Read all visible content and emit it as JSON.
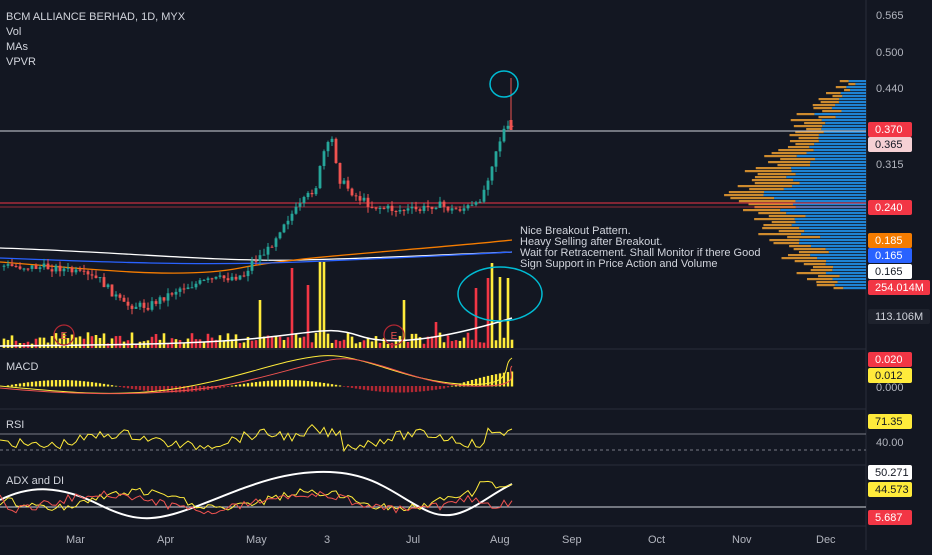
{
  "header": {
    "title": "BCM ALLIANCE BERHAD, 1D, MYX",
    "indicators": [
      "Vol",
      "MAs",
      "VPVR"
    ]
  },
  "main_axis": {
    "ticks": [
      "0.565",
      "0.500",
      "0.440",
      "0.315"
    ],
    "badges": [
      {
        "text": "0.370",
        "bg": "#f23645",
        "fg": "#ffffff"
      },
      {
        "text": "0.365",
        "bg": "#f5d0d4",
        "fg": "#131722"
      },
      {
        "text": "0.240",
        "bg": "#f23645",
        "fg": "#ffffff"
      },
      {
        "text": "0.185",
        "bg": "#f57c00",
        "fg": "#ffffff"
      },
      {
        "text": "0.165",
        "bg": "#2962ff",
        "fg": "#ffffff"
      },
      {
        "text": "0.165",
        "bg": "#ffffff",
        "fg": "#131722"
      },
      {
        "text": "254.014M",
        "bg": "#f23645",
        "fg": "#ffffff"
      },
      {
        "text": "113.106M",
        "bg": "#1e222d",
        "fg": "#d1d4dc"
      }
    ]
  },
  "annotation": {
    "lines": [
      "Nice Breakout Pattern.",
      "Heavy Selling after Breakout.",
      "Wait for Retracement. Shall Monitor if there Good",
      "Sign Support in Price Action and Volume"
    ]
  },
  "events": [
    "E",
    "E"
  ],
  "panes": {
    "macd": {
      "title": "MACD",
      "ticks": [
        "0.000"
      ],
      "badges": [
        {
          "text": "0.020",
          "bg": "#f23645",
          "fg": "#ffffff"
        },
        {
          "text": "0.012",
          "bg": "#ffeb3b",
          "fg": "#131722"
        }
      ]
    },
    "rsi": {
      "title": "RSI",
      "ticks": [
        "40.00"
      ],
      "badges": [
        {
          "text": "71.35",
          "bg": "#ffeb3b",
          "fg": "#131722"
        }
      ]
    },
    "adx": {
      "title": "ADX and DI",
      "badges": [
        {
          "text": "50.271",
          "bg": "#ffffff",
          "fg": "#131722"
        },
        {
          "text": "44.573",
          "bg": "#ffeb3b",
          "fg": "#131722"
        },
        {
          "text": "5.687",
          "bg": "#f23645",
          "fg": "#ffffff"
        }
      ]
    }
  },
  "time_axis": [
    "Mar",
    "Apr",
    "May",
    "3",
    "Jul",
    "Aug",
    "Sep",
    "Oct",
    "Nov",
    "Dec"
  ],
  "colors": {
    "bg": "#131722",
    "up": "#26a69a",
    "down": "#ef5350",
    "vol_up": "#ffeb3b",
    "vol_down": "#f23645",
    "ma_white": "#ffffff",
    "ma_orange": "#f57c00",
    "ma_blue": "#2962ff",
    "vpvr_up": "#2196f3",
    "vpvr_down": "#f0a030",
    "circle": "#00bcd4"
  }
}
